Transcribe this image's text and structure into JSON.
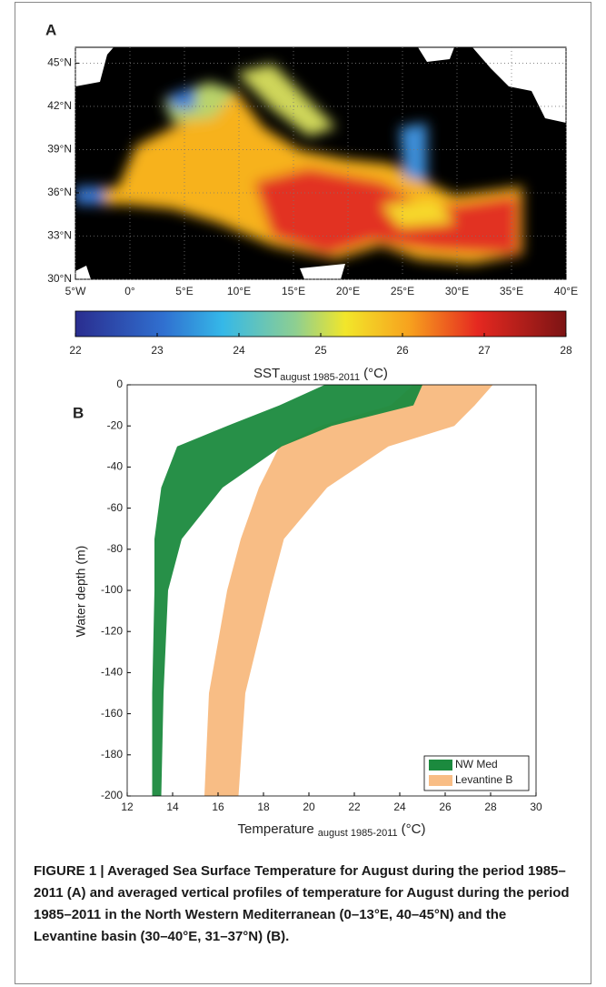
{
  "panel_a": {
    "label": "A",
    "map": {
      "xlim": [
        -5,
        40
      ],
      "ylim": [
        30,
        46.1
      ],
      "xticks": [
        {
          "value": -5,
          "label": "5°W"
        },
        {
          "value": 0,
          "label": "0°"
        },
        {
          "value": 5,
          "label": "5°E"
        },
        {
          "value": 10,
          "label": "10°E"
        },
        {
          "value": 15,
          "label": "15°E"
        },
        {
          "value": 20,
          "label": "20°E"
        },
        {
          "value": 25,
          "label": "25°E"
        },
        {
          "value": 30,
          "label": "30°E"
        },
        {
          "value": 35,
          "label": "35°E"
        },
        {
          "value": 40,
          "label": "40°E"
        }
      ],
      "yticks": [
        {
          "value": 30,
          "label": "30°N"
        },
        {
          "value": 33,
          "label": "33°N"
        },
        {
          "value": 36,
          "label": "36°N"
        },
        {
          "value": 39,
          "label": "39°N"
        },
        {
          "value": 42,
          "label": "42°N"
        },
        {
          "value": 45,
          "label": "45°N"
        }
      ]
    },
    "colorbar": {
      "range": [
        22,
        28
      ],
      "ticks": [
        22,
        23,
        24,
        25,
        26,
        27,
        28
      ],
      "label": "SST",
      "label_sub": "august 1985-2011",
      "label_unit": "(°C)"
    }
  },
  "chart_data": {
    "type": "band",
    "panel_label": "B",
    "x_label": "Temperature",
    "x_label_sub": "august 1985-2011",
    "x_label_unit": "(°C)",
    "y_label": "Water depth (m)",
    "xlim": [
      12,
      30
    ],
    "xticks": [
      12,
      14,
      16,
      18,
      20,
      22,
      24,
      26,
      28,
      30
    ],
    "ylim": [
      -200,
      0
    ],
    "yticks": [
      0,
      -20,
      -40,
      -60,
      -80,
      -100,
      -120,
      -140,
      -160,
      -180,
      -200
    ],
    "depth": [
      0,
      -10,
      -20,
      -30,
      -50,
      -75,
      -100,
      -150,
      -200
    ],
    "legend": "lower right",
    "series": [
      {
        "name": "Levantine B",
        "color": "#f8bd85",
        "low": [
          24.6,
          23.6,
          20.5,
          18.7,
          17.8,
          17.0,
          16.4,
          15.6,
          15.4
        ],
        "high": [
          28.1,
          27.3,
          26.4,
          23.5,
          20.8,
          18.9,
          18.3,
          17.2,
          16.9
        ]
      },
      {
        "name": "NW Med",
        "color": "#1b8a3e",
        "low": [
          20.7,
          18.7,
          16.4,
          14.2,
          13.5,
          13.2,
          13.2,
          13.1,
          13.1
        ],
        "high": [
          25.0,
          24.6,
          21.0,
          18.8,
          16.2,
          14.4,
          13.8,
          13.6,
          13.5
        ]
      }
    ]
  },
  "caption": "FIGURE 1 | Averaged Sea Surface Temperature for August during the period 1985–2011 (A) and averaged vertical profiles of temperature for August during the period 1985–2011 in the North Western Mediterranean (0–13°E, 40–45°N) and the Levantine basin (30–40°E, 31–37°N) (B)."
}
